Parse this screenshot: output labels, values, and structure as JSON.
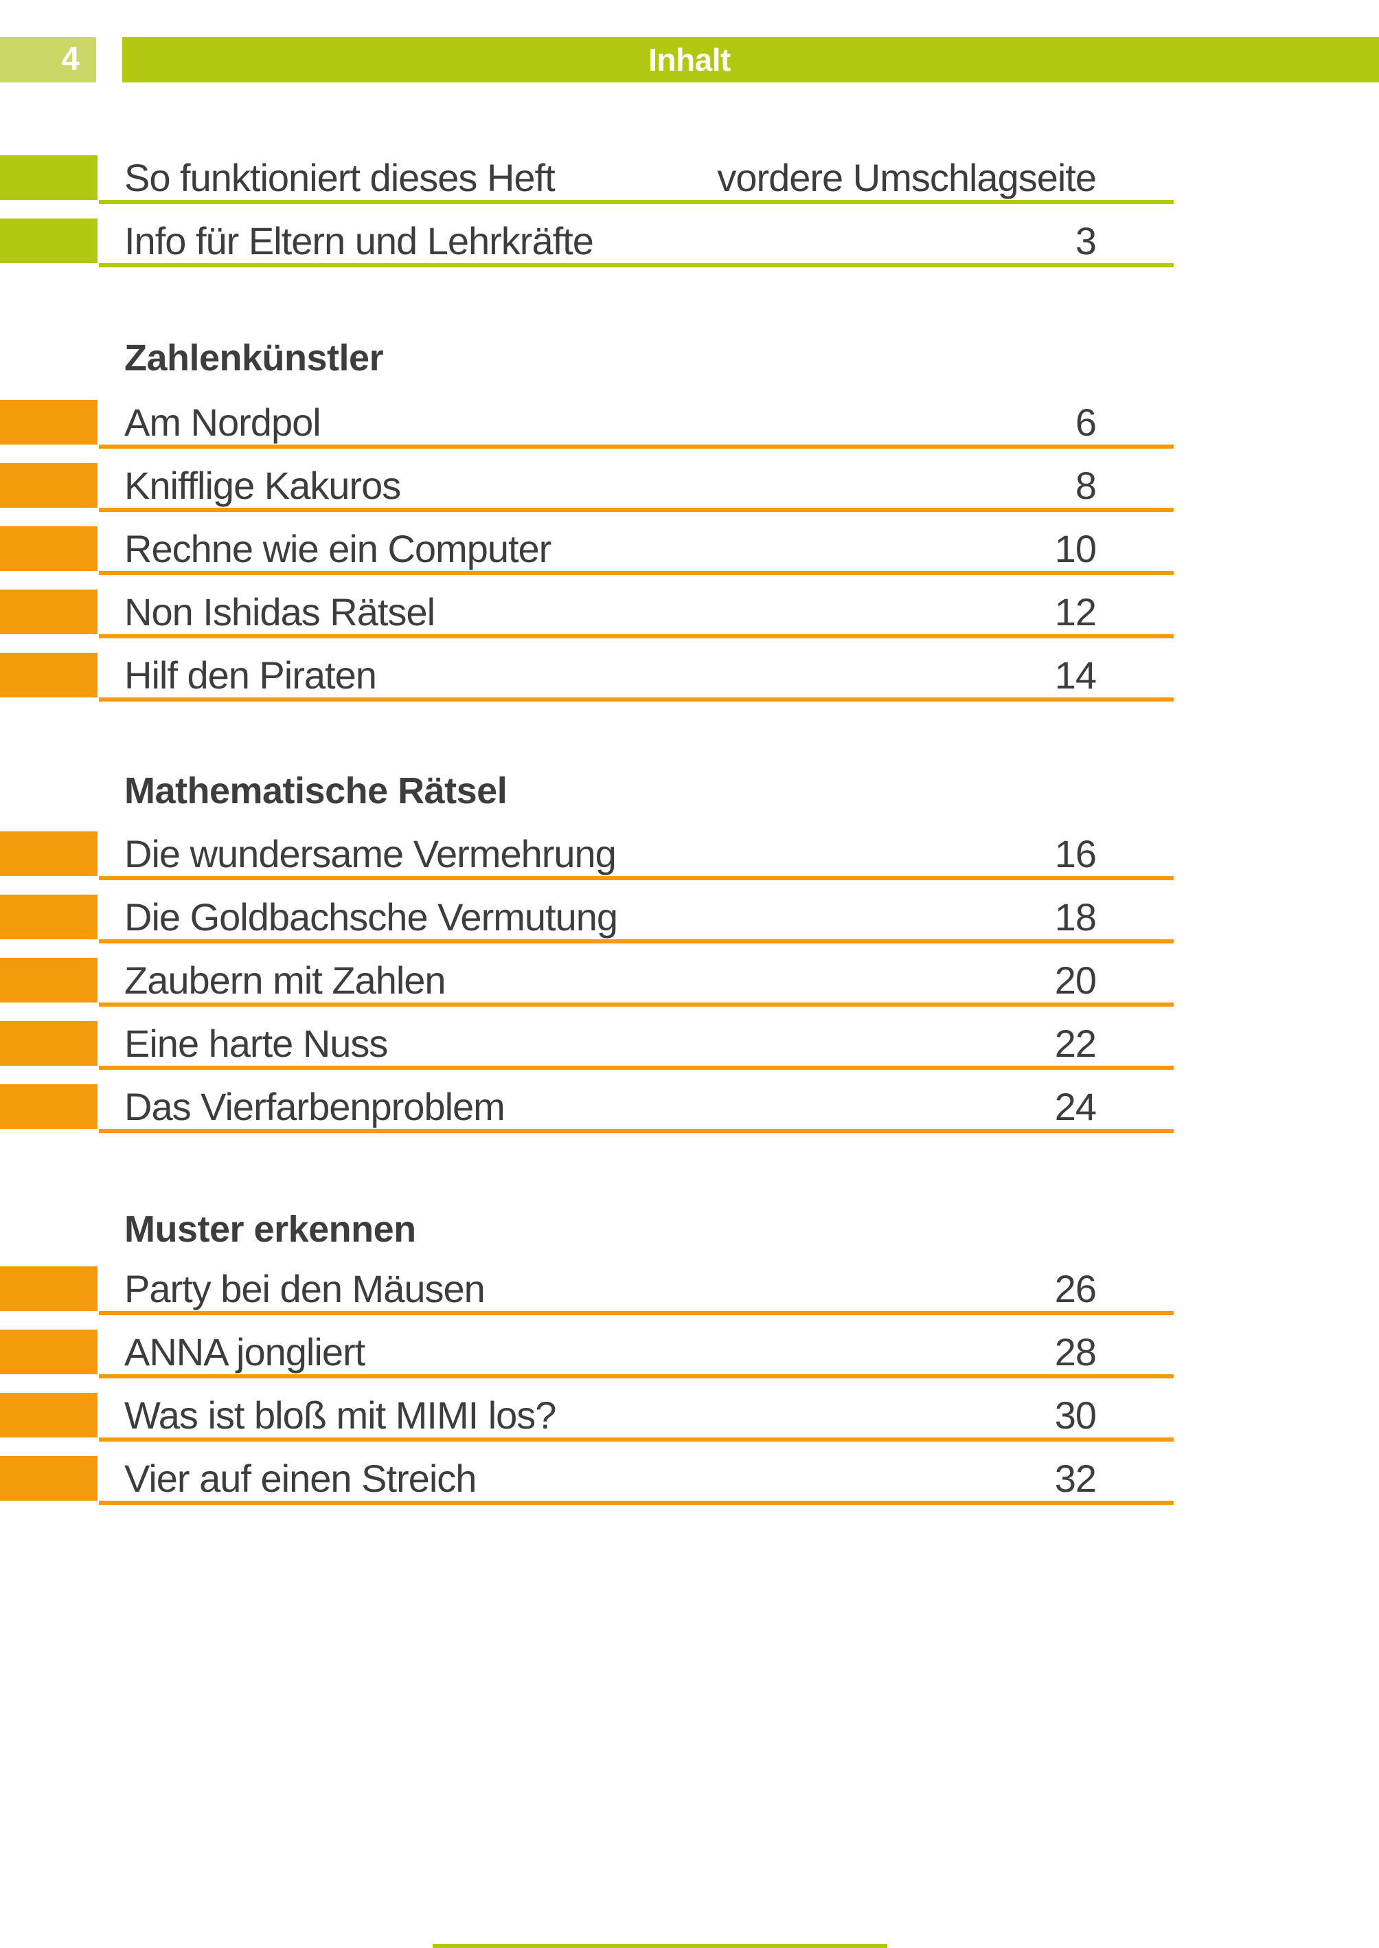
{
  "header": {
    "page_number": "4",
    "title": "Inhalt"
  },
  "colors": {
    "green": "#b2c70f",
    "light_green": "#cbd868",
    "orange": "#f49b0c",
    "text": "#3c3d3d"
  },
  "toc": {
    "intro": [
      {
        "label": "So funktioniert dieses Heft",
        "page": "vordere Umschlagseite"
      },
      {
        "label": "Info für Eltern und Lehrkräfte",
        "page": "3"
      }
    ],
    "sections": [
      {
        "heading": "Zahlenkünstler",
        "entries": [
          {
            "label": "Am Nordpol",
            "page": "6"
          },
          {
            "label": "Knifflige Kakuros",
            "page": "8"
          },
          {
            "label": "Rechne wie ein Computer",
            "page": "10"
          },
          {
            "label": "Non Ishidas Rätsel",
            "page": "12"
          },
          {
            "label": "Hilf den Piraten",
            "page": "14"
          }
        ]
      },
      {
        "heading": "Mathematische Rätsel",
        "entries": [
          {
            "label": "Die wundersame Vermehrung",
            "page": "16"
          },
          {
            "label": "Die Goldbachsche Vermutung",
            "page": "18"
          },
          {
            "label": "Zaubern mit Zahlen",
            "page": "20"
          },
          {
            "label": "Eine harte Nuss",
            "page": "22"
          },
          {
            "label": "Das Vierfarbenproblem",
            "page": "24"
          }
        ]
      },
      {
        "heading": "Muster erkennen",
        "entries": [
          {
            "label": "Party bei den Mäusen",
            "page": "26"
          },
          {
            "label": "ANNA jongliert",
            "page": "28"
          },
          {
            "label": "Was ist bloß mit MIMI los?",
            "page": "30"
          },
          {
            "label": "Vier auf einen Streich",
            "page": "32"
          }
        ]
      }
    ]
  }
}
